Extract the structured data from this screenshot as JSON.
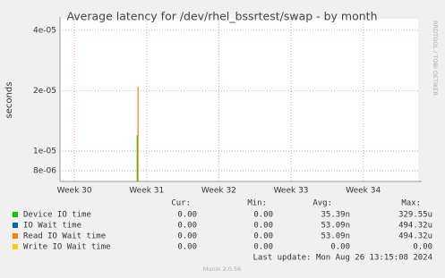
{
  "chart_data": {
    "type": "line",
    "title": "Average latency for /dev/rhel_bssrtest/swap - by month",
    "y_label": "seconds",
    "watermark": "RRDTOOL / TOBI OETIKER",
    "log_scale": true,
    "grid": true,
    "ylim": [
      7.07e-06,
      4.57e-05
    ],
    "yticks": [
      {
        "value": 8e-06,
        "label": "8e-06"
      },
      {
        "value": 1e-05,
        "label": "1e-05"
      },
      {
        "value": 2e-05,
        "label": "2e-05"
      },
      {
        "value": 4e-05,
        "label": "4e-05"
      }
    ],
    "xlim": [
      29.8,
      34.76
    ],
    "xticks": [
      {
        "value": 30,
        "label": "Week 30"
      },
      {
        "value": 31,
        "label": "Week 31"
      },
      {
        "value": 32,
        "label": "Week 32"
      },
      {
        "value": 33,
        "label": "Week 33"
      },
      {
        "value": 34,
        "label": "Week 34"
      }
    ],
    "series": [
      {
        "name": "Device IO time",
        "color": "#00cc00",
        "x": [
          30.87
        ],
        "values": [
          1.2e-05
        ]
      },
      {
        "name": "IO Wait time",
        "color": "#0066b3",
        "x": [],
        "values": []
      },
      {
        "name": "Read IO Wait time",
        "color": "#ff8000",
        "x": [
          30.88
        ],
        "values": [
          2.1e-05
        ]
      },
      {
        "name": "Write IO Wait time",
        "color": "#ffcc00",
        "x": [],
        "values": []
      }
    ],
    "legend_table": {
      "headers": [
        "Cur:",
        "Min:",
        "Avg:",
        "Max:"
      ],
      "rows": [
        [
          "0.00",
          "0.00",
          "35.39n",
          "329.55u"
        ],
        [
          "0.00",
          "0.00",
          "53.09n",
          "494.32u"
        ],
        [
          "0.00",
          "0.00",
          "53.09n",
          "494.32u"
        ],
        [
          "0.00",
          "0.00",
          "0.00",
          "0.00"
        ]
      ]
    },
    "last_update": "Last update: Mon Aug 26 13:15:08 2024",
    "footer": "Munin 2.0.56"
  }
}
